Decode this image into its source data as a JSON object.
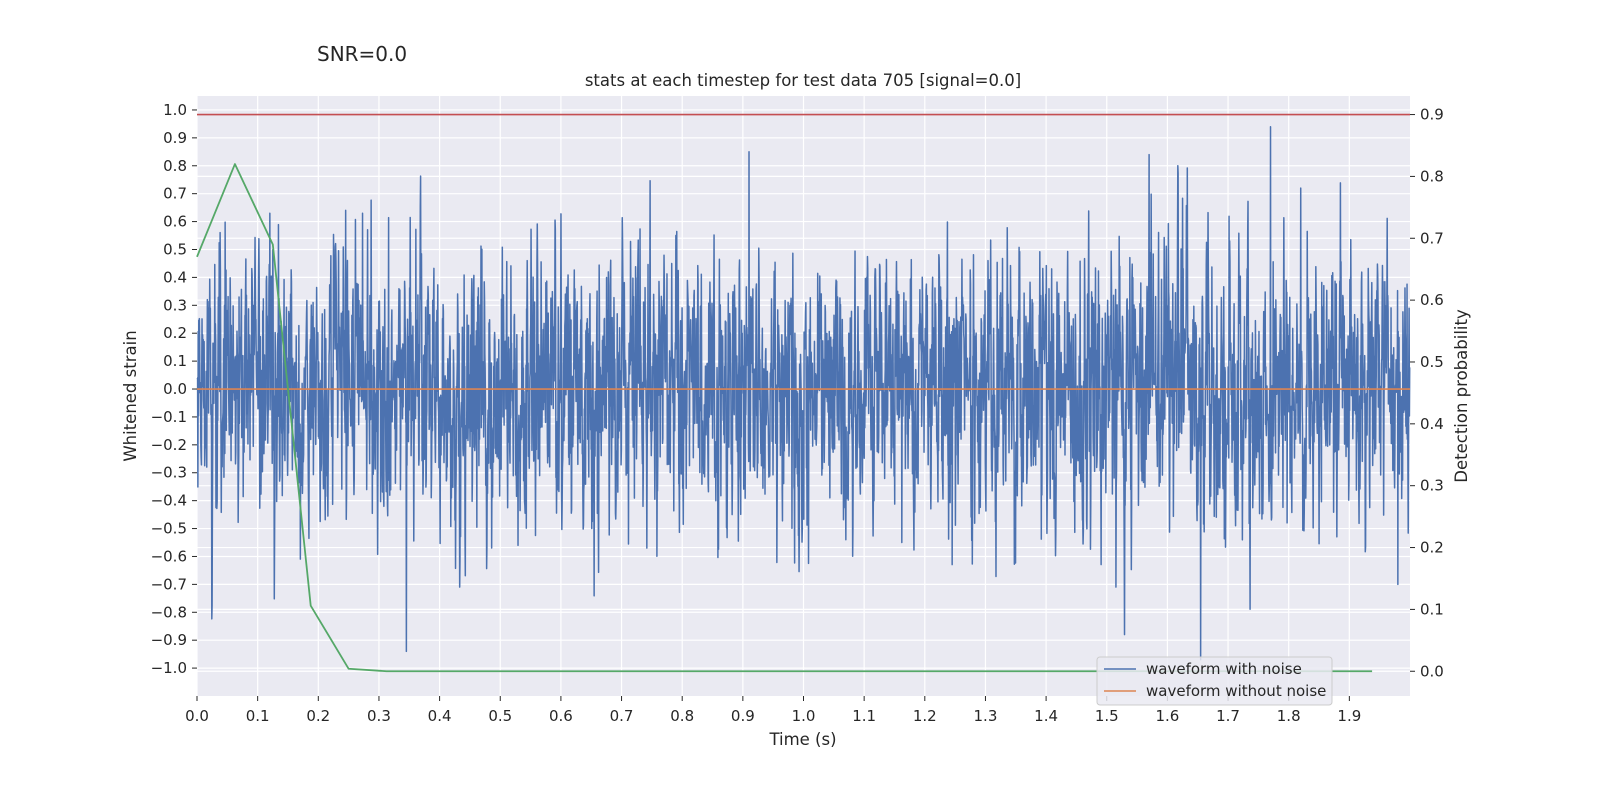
{
  "chart_data": {
    "type": "line",
    "suptitle": "SNR=0.0",
    "title": "stats at each timestep for test data 705 [signal=0.0]",
    "xlabel": "Time (s)",
    "ylabel_left": "Whitened strain",
    "ylabel_right": "Detection probability",
    "xlim": [
      0.0,
      2.0
    ],
    "ylim_left": [
      -1.1,
      1.05
    ],
    "ylim_right": [
      -0.04,
      0.93
    ],
    "x_ticks": [
      "0.0",
      "0.1",
      "0.2",
      "0.3",
      "0.4",
      "0.5",
      "0.6",
      "0.7",
      "0.8",
      "0.9",
      "1.0",
      "1.1",
      "1.2",
      "1.3",
      "1.4",
      "1.5",
      "1.6",
      "1.7",
      "1.8",
      "1.9"
    ],
    "y_ticks_left": [
      "1.0",
      "0.9",
      "0.8",
      "0.7",
      "0.6",
      "0.5",
      "0.4",
      "0.3",
      "0.2",
      "0.1",
      "0.0",
      "−0.1",
      "−0.2",
      "−0.3",
      "−0.4",
      "−0.5",
      "−0.6",
      "−0.7",
      "−0.8",
      "−0.9",
      "−1.0"
    ],
    "y_ticks_right": [
      "0.9",
      "0.8",
      "0.7",
      "0.6",
      "0.5",
      "0.4",
      "0.3",
      "0.2",
      "0.1",
      "0.0"
    ],
    "grid": true,
    "legend_position": "lower-right",
    "colors": {
      "noisy": "#4c72b0",
      "clean": "#dd8452",
      "probability": "#55a868",
      "threshold": "#c44e52",
      "plot_bg": "#eaeaf2",
      "grid": "#ffffff"
    },
    "series": [
      {
        "name": "waveform with noise",
        "axis": "left",
        "style": "noise",
        "sample_rate": 2048,
        "duration": 2.0,
        "seed": 705,
        "scale": 0.24,
        "peaks": [
          {
            "x": 0.12,
            "y": 0.63
          },
          {
            "x": 0.245,
            "y": 0.64
          },
          {
            "x": 0.273,
            "y": 0.63
          },
          {
            "x": 0.345,
            "y": -0.94
          },
          {
            "x": 0.91,
            "y": 0.85
          },
          {
            "x": 1.162,
            "y": -0.55
          },
          {
            "x": 1.57,
            "y": 0.84
          },
          {
            "x": 1.655,
            "y": -0.97
          },
          {
            "x": 1.77,
            "y": 0.94
          },
          {
            "x": 1.82,
            "y": 0.72
          },
          {
            "x": 1.515,
            "y": -0.71
          },
          {
            "x": 1.98,
            "y": -0.7
          }
        ]
      },
      {
        "name": "waveform without noise",
        "axis": "left",
        "x": [
          0.0,
          2.0
        ],
        "y": [
          0.0,
          0.0
        ]
      },
      {
        "name": "detection probability",
        "axis": "right",
        "x": [
          0.0,
          0.0625,
          0.125,
          0.1875,
          0.25,
          0.3125,
          0.375,
          1.9375
        ],
        "y": [
          0.67,
          0.82,
          0.69,
          0.106,
          0.004,
          0.0,
          0.0,
          0.0
        ]
      }
    ],
    "threshold": {
      "axis": "right",
      "value": 0.9
    },
    "legend": [
      {
        "label": "waveform with noise",
        "series": "noisy"
      },
      {
        "label": "waveform without noise",
        "series": "clean"
      }
    ]
  }
}
